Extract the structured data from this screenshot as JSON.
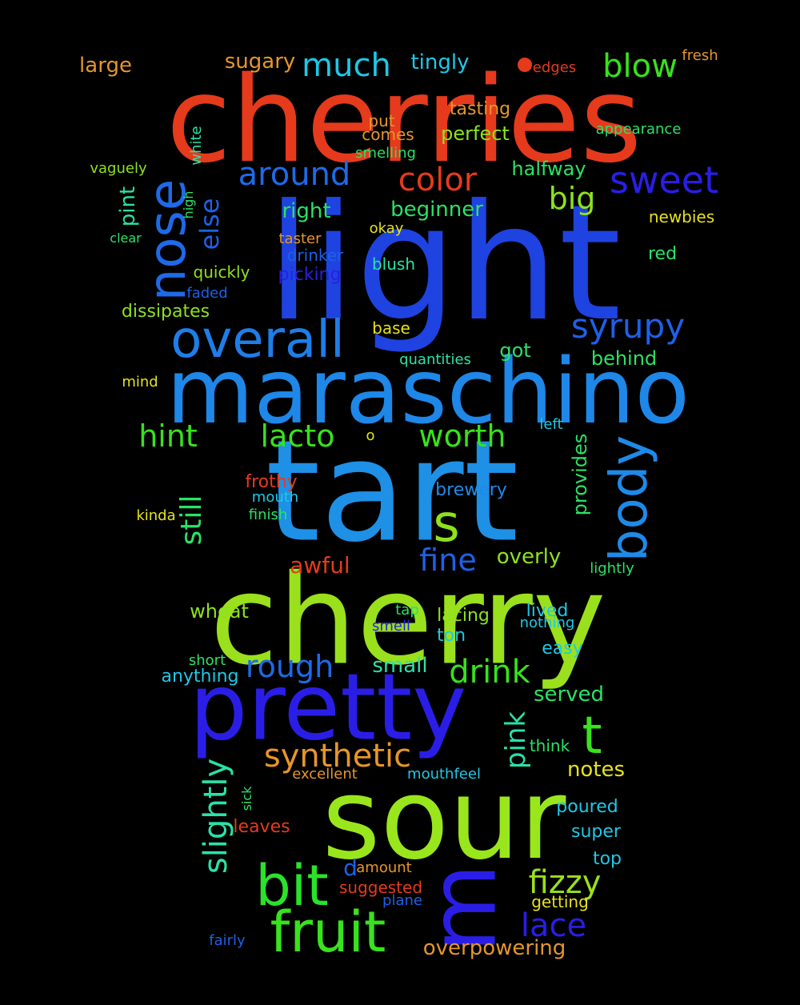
{
  "cloud": {
    "words": [
      {
        "text": "cherries",
        "color": "#e63a1c"
      },
      {
        "text": "light",
        "color": "#1f43e0"
      },
      {
        "text": "maraschino",
        "color": "#1e87e8"
      },
      {
        "text": "tart",
        "color": "#1e90e6"
      },
      {
        "text": "cherry",
        "color": "#9ae01c"
      },
      {
        "text": "sour",
        "color": "#9ae61c"
      },
      {
        "text": "pretty",
        "color": "#2a1ee6"
      },
      {
        "text": "m",
        "color": "#2a1ee6"
      },
      {
        "text": "fruit",
        "color": "#38e21c"
      },
      {
        "text": "bit",
        "color": "#2ae22a"
      },
      {
        "text": "overall",
        "color": "#1e7ee8"
      },
      {
        "text": "nose",
        "color": "#1e6ae8"
      },
      {
        "text": "body",
        "color": "#1e8ae8"
      },
      {
        "text": "synthetic",
        "color": "#e6962a"
      },
      {
        "text": "slightly",
        "color": "#2ae2a8"
      },
      {
        "text": "s",
        "color": "#8ee21c"
      },
      {
        "text": "t",
        "color": "#38e21c"
      },
      {
        "text": "sweet",
        "color": "#2a1ee6"
      },
      {
        "text": "syrupy",
        "color": "#1e60e8"
      },
      {
        "text": "around",
        "color": "#1e6ae8"
      },
      {
        "text": "color",
        "color": "#e63a1c"
      },
      {
        "text": "much",
        "color": "#1ec8e6"
      },
      {
        "text": "blow",
        "color": "#38e21c"
      },
      {
        "text": "drink",
        "color": "#38e21c"
      },
      {
        "text": "rough",
        "color": "#1e6ae8"
      },
      {
        "text": "fizzy",
        "color": "#9ae01c"
      },
      {
        "text": "lace",
        "color": "#2a1ee6"
      },
      {
        "text": "fine",
        "color": "#1e60e8"
      },
      {
        "text": "hint",
        "color": "#38e21c"
      },
      {
        "text": "lacto",
        "color": "#38e21c"
      },
      {
        "text": "worth",
        "color": "#38e21c"
      },
      {
        "text": "big",
        "color": "#8ee21c"
      },
      {
        "text": "still",
        "color": "#2ae266"
      },
      {
        "text": "pink",
        "color": "#2ae2a8"
      },
      {
        "text": "else",
        "color": "#1e60e8"
      },
      {
        "text": "large",
        "color": "#e6962a"
      },
      {
        "text": "sugary",
        "color": "#e6962a"
      },
      {
        "text": "tingly",
        "color": "#1ec8e6"
      },
      {
        "text": "edges",
        "color": "#e63a1c"
      },
      {
        "text": "fresh",
        "color": "#e6962a"
      },
      {
        "text": "tasting",
        "color": "#e6962a"
      },
      {
        "text": "put",
        "color": "#e6962a"
      },
      {
        "text": "comes",
        "color": "#e6962a"
      },
      {
        "text": "perfect",
        "color": "#8ee21c"
      },
      {
        "text": "appearance",
        "color": "#2ae266"
      },
      {
        "text": "smelling",
        "color": "#2ae266"
      },
      {
        "text": "halfway",
        "color": "#2ae266"
      },
      {
        "text": "vaguely",
        "color": "#8ee21c"
      },
      {
        "text": "white",
        "color": "#2ae2a8"
      },
      {
        "text": "pint",
        "color": "#2ae2a8"
      },
      {
        "text": "high",
        "color": "#2ae266"
      },
      {
        "text": "clear",
        "color": "#2ae266"
      },
      {
        "text": "right",
        "color": "#2ae266"
      },
      {
        "text": "beginner",
        "color": "#2ae266"
      },
      {
        "text": "newbies",
        "color": "#e6e21c"
      },
      {
        "text": "taster",
        "color": "#e6962a"
      },
      {
        "text": "okay",
        "color": "#e6e21c"
      },
      {
        "text": "drinker",
        "color": "#1e60e8"
      },
      {
        "text": "red",
        "color": "#2ae266"
      },
      {
        "text": "blush",
        "color": "#2ae2a8"
      },
      {
        "text": "quickly",
        "color": "#8ee21c"
      },
      {
        "text": "picking",
        "color": "#2a1ee6"
      },
      {
        "text": "faded",
        "color": "#1e60e8"
      },
      {
        "text": "dissipates",
        "color": "#8ee21c"
      },
      {
        "text": "base",
        "color": "#e6e21c"
      },
      {
        "text": "got",
        "color": "#2ae266"
      },
      {
        "text": "behind",
        "color": "#2ae266"
      },
      {
        "text": "quantities",
        "color": "#2ae2a8"
      },
      {
        "text": "mind",
        "color": "#e6e21c"
      },
      {
        "text": "left",
        "color": "#1ec8e6"
      },
      {
        "text": "o",
        "color": "#e6e21c"
      },
      {
        "text": "provides",
        "color": "#2ae266"
      },
      {
        "text": "frothy",
        "color": "#e63a1c"
      },
      {
        "text": "brewery",
        "color": "#1e8ae8"
      },
      {
        "text": "mouth",
        "color": "#1ec8e6"
      },
      {
        "text": "finish",
        "color": "#2ae266"
      },
      {
        "text": "kinda",
        "color": "#e6e21c"
      },
      {
        "text": "overly",
        "color": "#8ee21c"
      },
      {
        "text": "lightly",
        "color": "#2ae266"
      },
      {
        "text": "awful",
        "color": "#e63a1c"
      },
      {
        "text": "wheat",
        "color": "#8ee21c"
      },
      {
        "text": "tap",
        "color": "#2ae266"
      },
      {
        "text": "smell",
        "color": "#2a1ee6"
      },
      {
        "text": "lacing",
        "color": "#8ee21c"
      },
      {
        "text": "lived",
        "color": "#1ec8e6"
      },
      {
        "text": "nothing",
        "color": "#1ec8e6"
      },
      {
        "text": "ton",
        "color": "#1ec8e6"
      },
      {
        "text": "easy",
        "color": "#1ec8e6"
      },
      {
        "text": "short",
        "color": "#2ae266"
      },
      {
        "text": "anything",
        "color": "#1ec8e6"
      },
      {
        "text": "small",
        "color": "#2ae2a8"
      },
      {
        "text": "served",
        "color": "#2ae266"
      },
      {
        "text": "think",
        "color": "#2ae266"
      },
      {
        "text": "notes",
        "color": "#e6e21c"
      },
      {
        "text": "excellent",
        "color": "#e6962a"
      },
      {
        "text": "mouthfeel",
        "color": "#1ec8e6"
      },
      {
        "text": "sick",
        "color": "#2ae266"
      },
      {
        "text": "poured",
        "color": "#1ec8e6"
      },
      {
        "text": "leaves",
        "color": "#e63a1c"
      },
      {
        "text": "super",
        "color": "#1ec8e6"
      },
      {
        "text": "d",
        "color": "#1e60e8"
      },
      {
        "text": "amount",
        "color": "#e6962a"
      },
      {
        "text": "top",
        "color": "#1ec8e6"
      },
      {
        "text": "suggested",
        "color": "#e63a1c"
      },
      {
        "text": "plane",
        "color": "#1e60e8"
      },
      {
        "text": "getting",
        "color": "#e6e21c"
      },
      {
        "text": "overpowering",
        "color": "#e6962a"
      },
      {
        "text": "fairly",
        "color": "#1e60e8"
      }
    ],
    "dot_color": "#e63a1c"
  }
}
